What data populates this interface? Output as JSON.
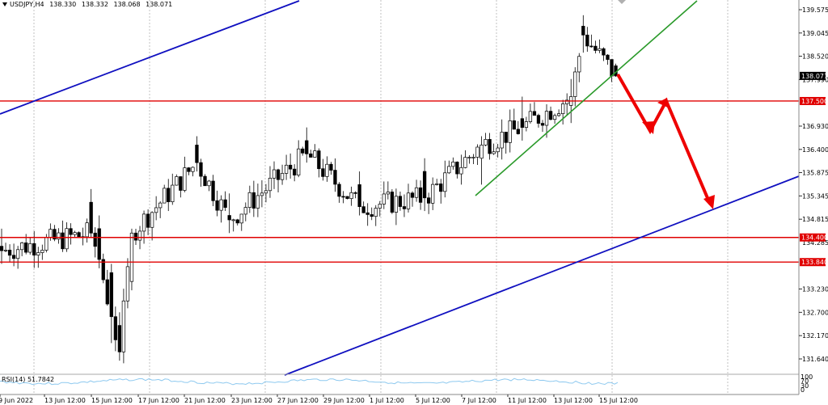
{
  "header": {
    "symbol": "USDJPY,H4",
    "open": "138.330",
    "high": "138.332",
    "low": "138.068",
    "close": "138.071"
  },
  "rsi": {
    "label": "RSI(14) 51.7842",
    "levels": [
      "100",
      "70",
      "30",
      "0"
    ]
  },
  "chart_data": {
    "type": "candlestick",
    "x_axis_labels": [
      "9 Jun 2022",
      "13 Jun 12:00",
      "15 Jun 12:00",
      "17 Jun 12:00",
      "21 Jun 12:00",
      "23 Jun 12:00",
      "27 Jun 12:00",
      "29 Jun 12:00",
      "1 Jul 12:00",
      "5 Jul 12:00",
      "7 Jul 12:00",
      "11 Jul 12:00",
      "13 Jul 12:00",
      "15 Jul 12:00"
    ],
    "y_axis_labels": [
      "139.575",
      "139.045",
      "138.520",
      "137.990",
      "136.930",
      "136.400",
      "135.875",
      "135.345",
      "134.815",
      "133.230",
      "132.700",
      "132.170",
      "131.640"
    ],
    "ylim": [
      131.3,
      139.8
    ],
    "current_price": "138.071",
    "levels": [
      {
        "label": "137.500",
        "value": 137.5,
        "color": "#e00000"
      },
      {
        "label": "134.400",
        "value": 134.4,
        "color": "#e00000"
      },
      {
        "label": "133.840",
        "value": 133.84,
        "color": "#e00000"
      }
    ],
    "hidden_labels": [
      "134.285"
    ],
    "candle_sampling": [
      {
        "bar": 0,
        "open": 134.2,
        "high": 134.6,
        "low": 133.8,
        "close": 134.1
      },
      {
        "bar": 22,
        "open": 135.2,
        "high": 135.5,
        "low": 134.4,
        "close": 134.5
      },
      {
        "bar": 24,
        "open": 134.6,
        "high": 134.9,
        "low": 133.7,
        "close": 133.9
      },
      {
        "bar": 27,
        "open": 133.6,
        "high": 133.8,
        "low": 132.0,
        "close": 132.6
      },
      {
        "bar": 29,
        "open": 132.4,
        "high": 132.7,
        "low": 131.6,
        "close": 131.8
      },
      {
        "bar": 32,
        "open": 133.4,
        "high": 134.6,
        "low": 133.2,
        "close": 134.5
      },
      {
        "bar": 48,
        "open": 136.5,
        "high": 136.7,
        "low": 135.9,
        "close": 136.1
      },
      {
        "bar": 56,
        "open": 134.9,
        "high": 135.4,
        "low": 134.5,
        "close": 134.8
      },
      {
        "bar": 75,
        "open": 136.6,
        "high": 136.9,
        "low": 136.1,
        "close": 136.3
      },
      {
        "bar": 88,
        "open": 135.6,
        "high": 135.9,
        "low": 134.9,
        "close": 135.1
      },
      {
        "bar": 104,
        "open": 135.9,
        "high": 136.2,
        "low": 135.0,
        "close": 135.3
      },
      {
        "bar": 118,
        "open": 136.2,
        "high": 136.7,
        "low": 135.6,
        "close": 136.5
      },
      {
        "bar": 128,
        "open": 137.1,
        "high": 137.6,
        "low": 136.6,
        "close": 136.9
      },
      {
        "bar": 140,
        "open": 137.4,
        "high": 138.0,
        "low": 137.0,
        "close": 137.6
      },
      {
        "bar": 143,
        "open": 139.2,
        "high": 139.45,
        "low": 138.6,
        "close": 139.0
      },
      {
        "bar": 151,
        "open": 138.3,
        "high": 138.35,
        "low": 138.05,
        "close": 138.07
      }
    ]
  }
}
